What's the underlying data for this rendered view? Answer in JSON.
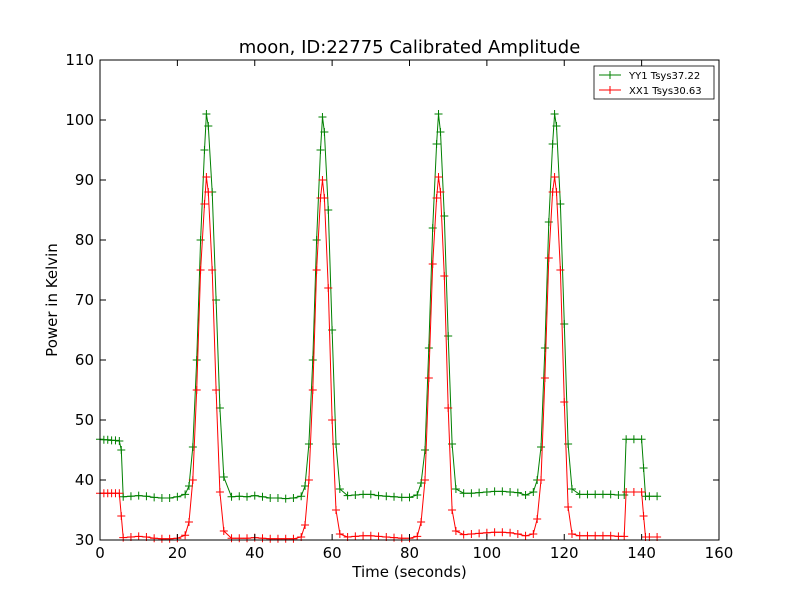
{
  "chart_data": {
    "type": "line",
    "title": "moon, ID:22775 Calibrated Amplitude",
    "xlabel": "Time (seconds)",
    "ylabel": "Power in Kelvin",
    "xlim": [
      0,
      160
    ],
    "ylim": [
      30,
      110
    ],
    "xticks": [
      0,
      20,
      40,
      60,
      80,
      100,
      120,
      140,
      160
    ],
    "yticks": [
      30,
      40,
      50,
      60,
      70,
      80,
      90,
      100,
      110
    ],
    "grid": false,
    "legend_position": "top-right",
    "series": [
      {
        "name": "YY1 Tsys37.22",
        "color": "#008000",
        "marker": "plus",
        "x": [
          0,
          1,
          2,
          3,
          4,
          5,
          5.5,
          6,
          8,
          10,
          12,
          14,
          16,
          18,
          20,
          22,
          23,
          24,
          25,
          26,
          27,
          27.5,
          28,
          29,
          30,
          31,
          32,
          34,
          36,
          38,
          40,
          42,
          44,
          46,
          48,
          50,
          52,
          53,
          54,
          55,
          56,
          57,
          57.5,
          58,
          59,
          60,
          61,
          62,
          64,
          66,
          68,
          70,
          72,
          74,
          76,
          78,
          80,
          82,
          83,
          84,
          85,
          86,
          87,
          87.5,
          88,
          89,
          90,
          91,
          92,
          94,
          96,
          98,
          100,
          102,
          104,
          106,
          108,
          110,
          112,
          113,
          114,
          115,
          116,
          117,
          117.5,
          118,
          119,
          120,
          121,
          122,
          124,
          126,
          128,
          130,
          132,
          134,
          135.5,
          136,
          138,
          140,
          140.5,
          141,
          142,
          144
        ],
        "y": [
          46.8,
          46.7,
          46.7,
          46.6,
          46.6,
          46.5,
          45,
          37.2,
          37.3,
          37.4,
          37.3,
          37.1,
          37.0,
          37.0,
          37.2,
          37.6,
          39.0,
          45.5,
          60.0,
          80.0,
          95.0,
          101.0,
          99.0,
          88.0,
          70.0,
          52.0,
          40.5,
          37.2,
          37.3,
          37.2,
          37.4,
          37.2,
          37.0,
          37.0,
          36.9,
          37.0,
          37.3,
          39.0,
          46.0,
          60.0,
          80.0,
          95.0,
          100.5,
          98.0,
          85.0,
          65.0,
          46.0,
          38.5,
          37.4,
          37.5,
          37.6,
          37.6,
          37.4,
          37.3,
          37.2,
          37.1,
          37.1,
          37.5,
          39.5,
          45.0,
          62.0,
          82.0,
          96.0,
          101.0,
          98.0,
          84.0,
          64.0,
          46.0,
          38.5,
          37.8,
          37.8,
          37.9,
          38.0,
          38.1,
          38.1,
          38.0,
          37.9,
          37.5,
          38.0,
          40.0,
          45.5,
          62.0,
          83.0,
          96.0,
          101.0,
          99.0,
          86.0,
          66.0,
          46.0,
          38.5,
          37.6,
          37.6,
          37.6,
          37.6,
          37.6,
          37.5,
          37.5,
          46.8,
          46.8,
          46.8,
          42.0,
          37.3,
          37.3,
          37.3
        ]
      },
      {
        "name": "XX1 Tsys30.63",
        "color": "#ff0000",
        "marker": "plus",
        "x": [
          0,
          1,
          2,
          3,
          4,
          5,
          5.5,
          6,
          8,
          10,
          12,
          14,
          16,
          18,
          20,
          22,
          23,
          24,
          25,
          26,
          27,
          27.5,
          28,
          29,
          30,
          31,
          32,
          34,
          36,
          38,
          40,
          42,
          44,
          46,
          48,
          50,
          52,
          53,
          54,
          55,
          56,
          57,
          57.5,
          58,
          59,
          60,
          61,
          62,
          64,
          66,
          68,
          70,
          72,
          74,
          76,
          78,
          80,
          82,
          83,
          84,
          85,
          86,
          87,
          87.5,
          88,
          89,
          90,
          91,
          92,
          94,
          96,
          98,
          100,
          102,
          104,
          106,
          108,
          110,
          112,
          113,
          114,
          115,
          116,
          117,
          117.5,
          118,
          119,
          120,
          121,
          122,
          124,
          126,
          128,
          130,
          132,
          134,
          135.5,
          136,
          138,
          140,
          140.5,
          141,
          142,
          144
        ],
        "y": [
          37.8,
          37.8,
          37.8,
          37.8,
          37.8,
          37.8,
          34.0,
          30.4,
          30.5,
          30.6,
          30.5,
          30.3,
          30.2,
          30.2,
          30.3,
          30.8,
          33.0,
          40.0,
          55.0,
          75.0,
          86.0,
          90.5,
          88.0,
          75.0,
          55.0,
          38.0,
          31.5,
          30.3,
          30.3,
          30.3,
          30.4,
          30.3,
          30.2,
          30.2,
          30.2,
          30.2,
          30.5,
          32.5,
          40.0,
          55.0,
          75.0,
          87.0,
          90.0,
          87.0,
          72.0,
          50.0,
          35.0,
          31.0,
          30.5,
          30.6,
          30.7,
          30.7,
          30.6,
          30.5,
          30.4,
          30.3,
          30.3,
          30.6,
          33.0,
          40.0,
          57.0,
          76.0,
          87.0,
          90.5,
          88.0,
          74.0,
          52.0,
          35.0,
          31.5,
          30.9,
          31.0,
          31.1,
          31.2,
          31.3,
          31.3,
          31.2,
          31.0,
          30.7,
          31.0,
          33.5,
          40.0,
          57.0,
          77.0,
          88.0,
          90.5,
          88.0,
          75.0,
          53.0,
          35.5,
          31.0,
          30.7,
          30.7,
          30.7,
          30.7,
          30.7,
          30.6,
          30.6,
          38.0,
          38.0,
          38.0,
          34.0,
          30.5,
          30.5,
          30.5
        ]
      }
    ]
  }
}
